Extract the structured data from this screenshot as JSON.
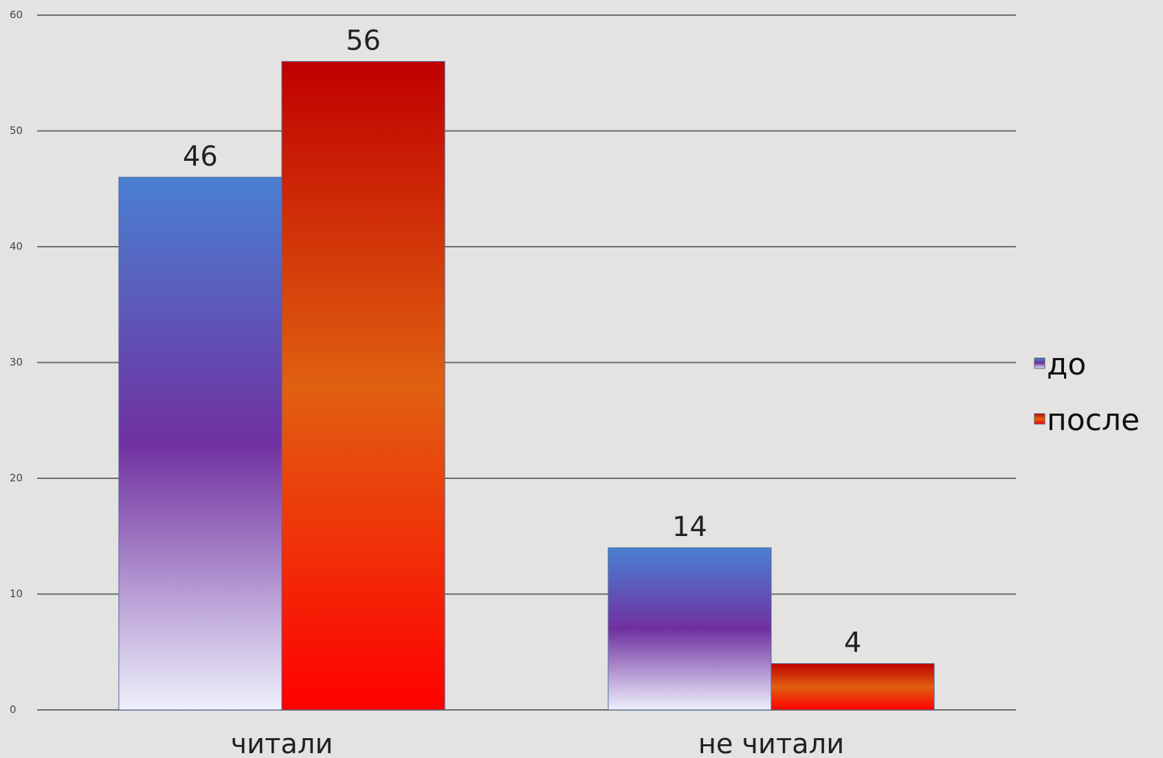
{
  "chart_data": {
    "type": "bar",
    "categories": [
      "читали",
      "не читали"
    ],
    "series": [
      {
        "name": "до",
        "color": "#7030a0",
        "values": [
          46,
          14
        ]
      },
      {
        "name": "после",
        "color": "#e06010",
        "values": [
          56,
          4
        ]
      }
    ],
    "ylim": [
      0,
      60
    ],
    "yticks": [
      0,
      10,
      20,
      30,
      40,
      50,
      60
    ],
    "grid": true,
    "legend": "right"
  }
}
